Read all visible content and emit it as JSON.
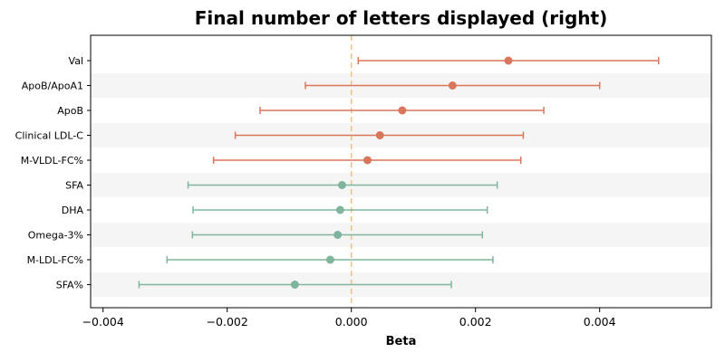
{
  "chart_data": {
    "type": "forest",
    "title": "Final number of letters displayed (right)",
    "xlabel": "Beta",
    "xlim": [
      -0.0042,
      0.0058
    ],
    "xticks": [
      -0.004,
      -0.002,
      0.0,
      0.002,
      0.004
    ],
    "xtick_labels": [
      "−0.004",
      "−0.002",
      "0.000",
      "0.002",
      "0.004"
    ],
    "reference_line": 0.0,
    "colors": {
      "positive": "#d9775c",
      "negative": "#7fb59c",
      "reference": "#f0c27a",
      "band": "#f5f5f5"
    },
    "rows": [
      {
        "label": "Val",
        "estimate": 0.00253,
        "lower": 0.00011,
        "upper": 0.00495,
        "group": "positive"
      },
      {
        "label": "ApoB/ApoA1",
        "estimate": 0.00163,
        "lower": -0.00074,
        "upper": 0.004,
        "group": "positive"
      },
      {
        "label": "ApoB",
        "estimate": 0.00082,
        "lower": -0.00147,
        "upper": 0.0031,
        "group": "positive"
      },
      {
        "label": "Clinical LDL-C",
        "estimate": 0.00046,
        "lower": -0.00187,
        "upper": 0.00277,
        "group": "positive"
      },
      {
        "label": "M-VLDL-FC%",
        "estimate": 0.00026,
        "lower": -0.00222,
        "upper": 0.00273,
        "group": "positive"
      },
      {
        "label": "SFA",
        "estimate": -0.00015,
        "lower": -0.00263,
        "upper": 0.00235,
        "group": "negative"
      },
      {
        "label": "DHA",
        "estimate": -0.00018,
        "lower": -0.00255,
        "upper": 0.00219,
        "group": "negative"
      },
      {
        "label": "Omega-3%",
        "estimate": -0.00022,
        "lower": -0.00256,
        "upper": 0.00211,
        "group": "negative"
      },
      {
        "label": "M-LDL-FC%",
        "estimate": -0.00034,
        "lower": -0.00297,
        "upper": 0.00228,
        "group": "negative"
      },
      {
        "label": "SFA%",
        "estimate": -0.00091,
        "lower": -0.00342,
        "upper": 0.00161,
        "group": "negative"
      }
    ]
  }
}
